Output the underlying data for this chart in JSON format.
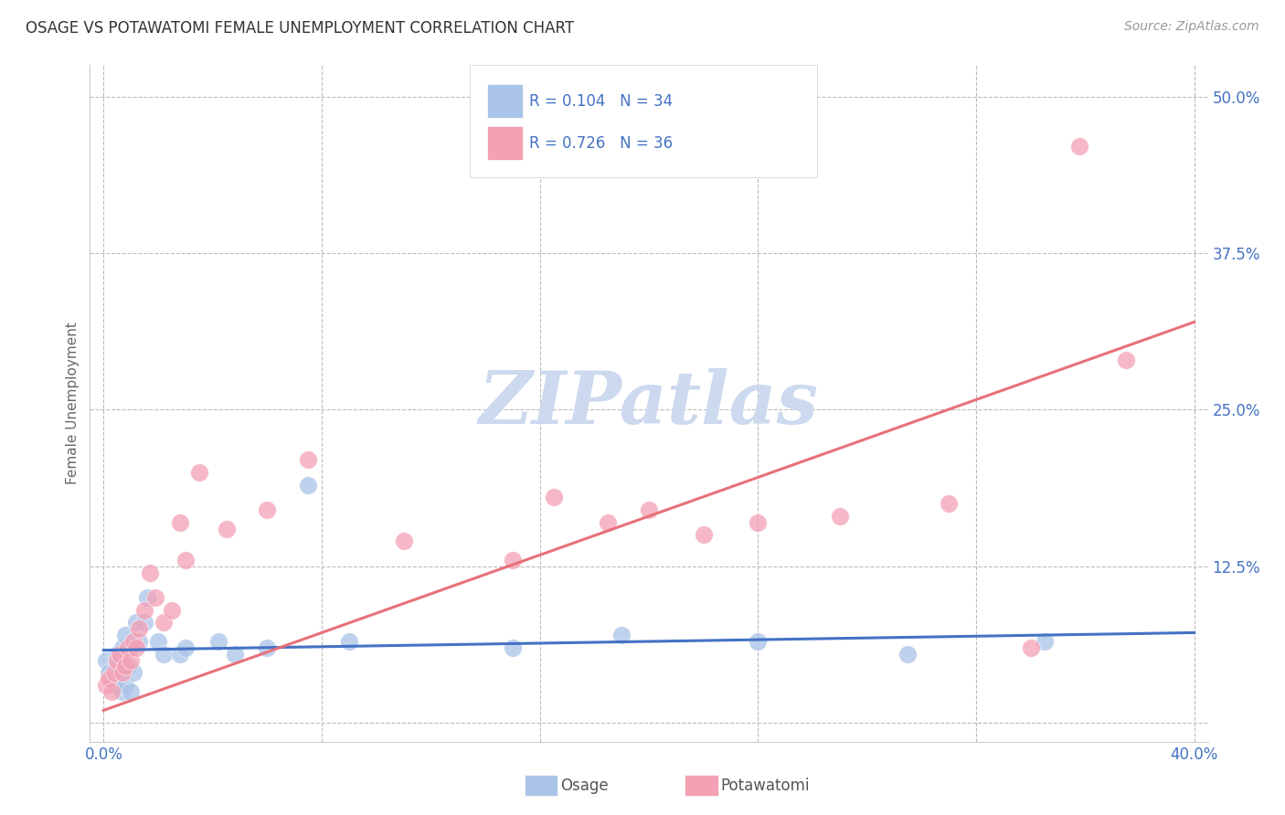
{
  "title": "OSAGE VS POTAWATOMI FEMALE UNEMPLOYMENT CORRELATION CHART",
  "source": "Source: ZipAtlas.com",
  "ylabel": "Female Unemployment",
  "background_color": "#ffffff",
  "grid_color": "#bbbbbb",
  "osage_color": "#aac4e8",
  "potawatomi_color": "#f4a0b5",
  "osage_line_color": "#4472c4",
  "potawatomi_line_color": "#e8707a",
  "osage_R": 0.104,
  "osage_N": 34,
  "potawatomi_R": 0.726,
  "potawatomi_N": 36,
  "text_color": "#4472c4",
  "watermark_color": "#ccd9ee",
  "xlim": [
    0.0,
    0.4
  ],
  "ylim": [
    0.0,
    0.52
  ],
  "osage_x": [
    0.001,
    0.002,
    0.003,
    0.004,
    0.005,
    0.005,
    0.006,
    0.006,
    0.007,
    0.007,
    0.008,
    0.008,
    0.009,
    0.01,
    0.01,
    0.011,
    0.012,
    0.013,
    0.015,
    0.016,
    0.02,
    0.022,
    0.028,
    0.03,
    0.042,
    0.048,
    0.06,
    0.075,
    0.09,
    0.15,
    0.19,
    0.24,
    0.295,
    0.345
  ],
  "osage_y": [
    0.05,
    0.04,
    0.035,
    0.03,
    0.055,
    0.045,
    0.05,
    0.04,
    0.06,
    0.025,
    0.07,
    0.03,
    0.045,
    0.06,
    0.025,
    0.04,
    0.08,
    0.065,
    0.08,
    0.1,
    0.065,
    0.055,
    0.055,
    0.06,
    0.065,
    0.055,
    0.06,
    0.19,
    0.065,
    0.06,
    0.07,
    0.065,
    0.055,
    0.065
  ],
  "potawatomi_x": [
    0.001,
    0.002,
    0.003,
    0.004,
    0.005,
    0.006,
    0.007,
    0.008,
    0.009,
    0.01,
    0.011,
    0.012,
    0.013,
    0.015,
    0.017,
    0.019,
    0.022,
    0.025,
    0.028,
    0.03,
    0.035,
    0.045,
    0.06,
    0.075,
    0.11,
    0.15,
    0.165,
    0.185,
    0.2,
    0.22,
    0.24,
    0.27,
    0.31,
    0.34,
    0.358,
    0.375
  ],
  "potawatomi_y": [
    0.03,
    0.035,
    0.025,
    0.04,
    0.05,
    0.055,
    0.04,
    0.045,
    0.06,
    0.05,
    0.065,
    0.06,
    0.075,
    0.09,
    0.12,
    0.1,
    0.08,
    0.09,
    0.16,
    0.13,
    0.2,
    0.155,
    0.17,
    0.21,
    0.145,
    0.13,
    0.18,
    0.16,
    0.17,
    0.15,
    0.16,
    0.165,
    0.175,
    0.06,
    0.46,
    0.29
  ],
  "osage_line_x": [
    0.0,
    0.4
  ],
  "osage_line_y": [
    0.058,
    0.072
  ],
  "pota_line_x": [
    0.0,
    0.4
  ],
  "pota_line_y": [
    0.01,
    0.32
  ]
}
